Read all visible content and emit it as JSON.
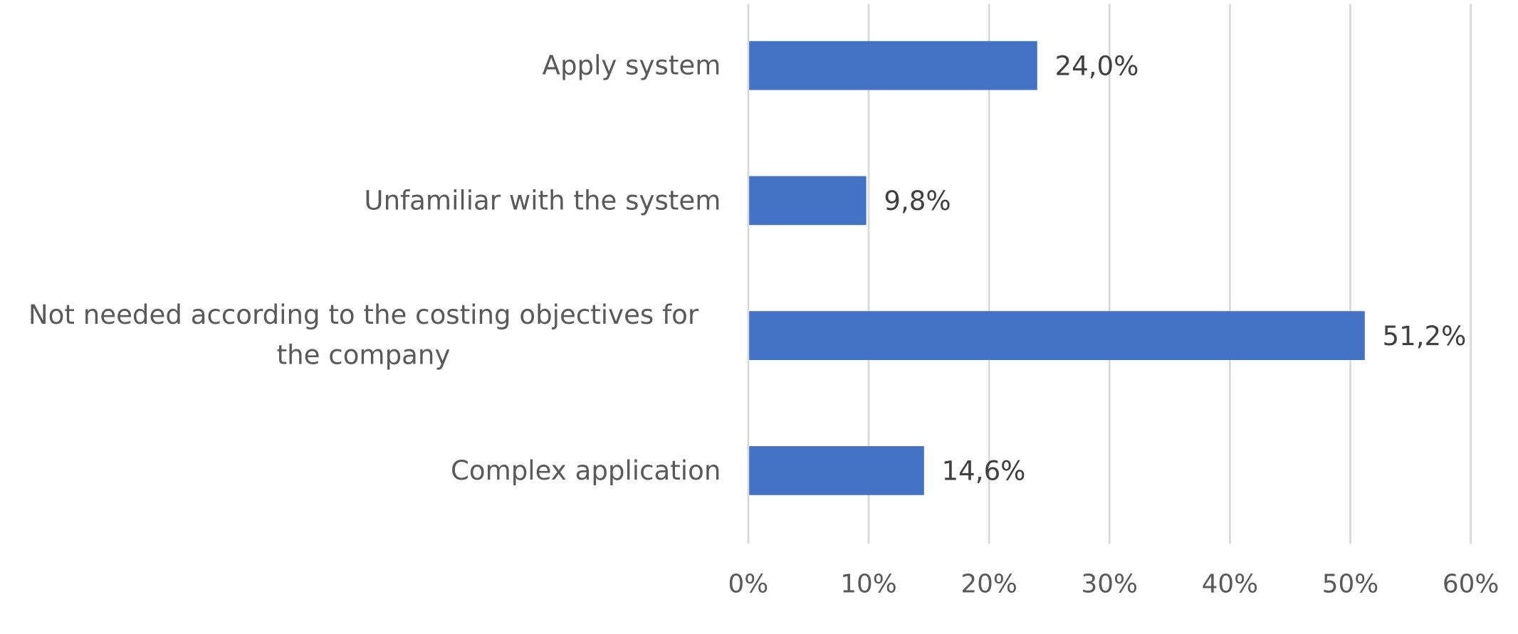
{
  "chart_data": {
    "type": "bar",
    "orientation": "horizontal",
    "categories": [
      "Apply system",
      "Unfamiliar with the system",
      "Not needed according to the costing objectives for the company",
      "Complex application"
    ],
    "values": [
      24.0,
      9.8,
      51.2,
      14.6
    ],
    "value_labels": [
      "24,0%",
      "9,8%",
      "51,2%",
      "14,6%"
    ],
    "color": "#4472c4",
    "xlim": [
      0,
      60
    ],
    "xticks": [
      {
        "value": 0,
        "label": "0%"
      },
      {
        "value": 10,
        "label": "10%"
      },
      {
        "value": 20,
        "label": "20%"
      },
      {
        "value": 30,
        "label": "30%"
      },
      {
        "value": 40,
        "label": "40%"
      },
      {
        "value": 50,
        "label": "50%"
      },
      {
        "value": 60,
        "label": "60%"
      }
    ],
    "grid": true
  }
}
